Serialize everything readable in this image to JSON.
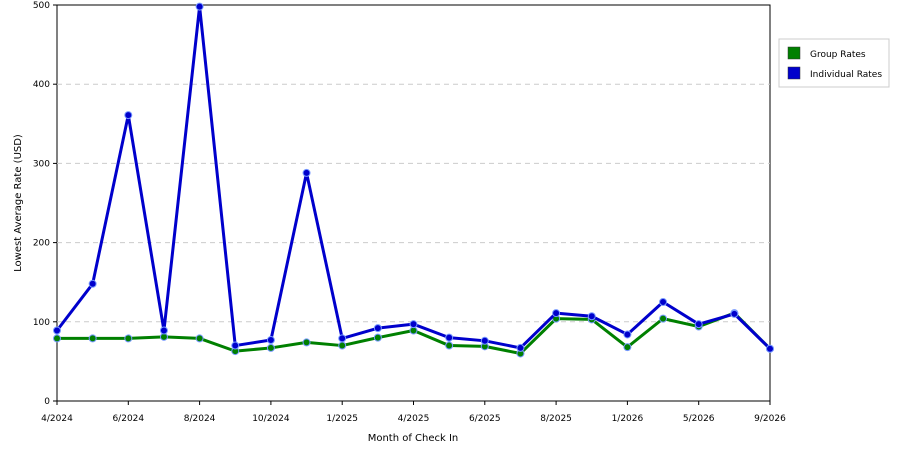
{
  "chart_data": {
    "type": "line",
    "xlabel": "Month of Check In",
    "ylabel": "Lowest Average Rate (USD)",
    "ylim": [
      0,
      500
    ],
    "y_ticks": [
      0,
      100,
      200,
      300,
      400,
      500
    ],
    "x_tick_labels": [
      "4/2024",
      "6/2024",
      "8/2024",
      "10/2024",
      "1/2025",
      "4/2025",
      "6/2025",
      "8/2025",
      "1/2026",
      "5/2026",
      "9/2026"
    ],
    "grid": "horizontal dashed",
    "legend_position": "right",
    "series": [
      {
        "name": "Group Rates",
        "color": "#008000",
        "values": [
          79,
          79,
          79,
          81,
          79,
          63,
          67,
          74,
          70,
          80,
          89,
          70,
          69,
          60,
          104,
          103,
          68,
          104,
          94,
          111,
          66
        ]
      },
      {
        "name": "Individual Rates",
        "color": "#0000cc",
        "values": [
          89,
          148,
          361,
          89,
          498,
          70,
          77,
          288,
          79,
          92,
          97,
          80,
          76,
          67,
          111,
          107,
          84,
          125,
          97,
          110,
          66
        ]
      }
    ]
  }
}
